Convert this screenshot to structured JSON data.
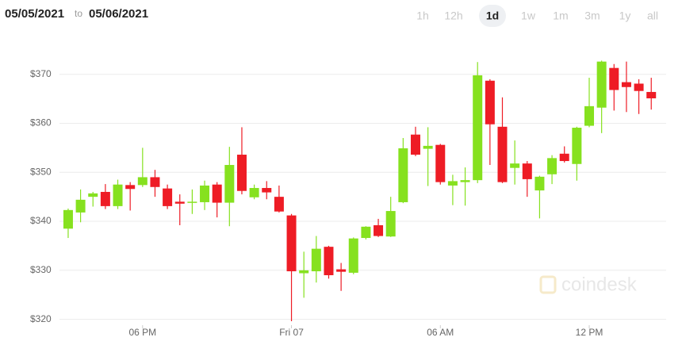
{
  "date_range": {
    "start": "05/05/2021",
    "separator": "to",
    "end": "05/06/2021"
  },
  "range_buttons": [
    {
      "label": "1h",
      "active": false
    },
    {
      "label": "12h",
      "active": false
    },
    {
      "label": "1d",
      "active": true
    },
    {
      "label": "1w",
      "active": false
    },
    {
      "label": "1m",
      "active": false
    },
    {
      "label": "3m",
      "active": false
    },
    {
      "label": "1y",
      "active": false
    },
    {
      "label": "all",
      "active": false
    }
  ],
  "watermark": "coindesk",
  "chart_data": {
    "type": "candlestick",
    "x": [
      15,
      15.5,
      16,
      16.5,
      17,
      17.5,
      18,
      18.5,
      19,
      19.5,
      20,
      20.5,
      21,
      21.5,
      22,
      22.5,
      23,
      23.5,
      24,
      24.5,
      25,
      25.5,
      26,
      26.5,
      27,
      27.5,
      28,
      28.5,
      29,
      29.5,
      30,
      30.5,
      31,
      31.5,
      32,
      32.5,
      33,
      33.5,
      34,
      34.5,
      35,
      35.5,
      36,
      36.5,
      37,
      37.5,
      38,
      38.5
    ],
    "open": [
      338.5,
      341.8,
      345.0,
      346.0,
      343.1,
      347.4,
      347.4,
      349.0,
      346.7,
      344.0,
      343.8,
      343.9,
      347.5,
      343.8,
      353.6,
      344.9,
      346.8,
      345.0,
      341.2,
      329.4,
      329.8,
      334.8,
      330.2,
      329.5,
      336.6,
      339.2,
      336.9,
      343.9,
      357.7,
      354.8,
      355.6,
      347.3,
      348.0,
      348.4,
      368.7,
      359.3,
      350.9,
      351.8,
      346.3,
      349.6,
      353.8,
      351.7,
      359.5,
      363.2,
      371.3,
      368.4,
      368.1,
      366.4
    ],
    "high": [
      342.6,
      346.5,
      346.0,
      347.6,
      348.5,
      348.0,
      355.0,
      350.5,
      347.5,
      345.5,
      346.5,
      348.3,
      348.0,
      355.2,
      359.2,
      347.5,
      348.2,
      347.3,
      341.5,
      333.8,
      337.0,
      335.0,
      331.5,
      336.7,
      339.0,
      340.5,
      345.0,
      357.0,
      359.3,
      359.2,
      355.8,
      349.5,
      351.0,
      372.5,
      369.0,
      365.3,
      356.5,
      352.3,
      349.3,
      353.5,
      355.3,
      359.3,
      369.3,
      372.8,
      372.1,
      372.6,
      369.0,
      369.3
    ],
    "low": [
      336.6,
      339.8,
      343.0,
      342.5,
      342.5,
      342.2,
      347.0,
      345.0,
      342.5,
      339.2,
      341.5,
      342.3,
      340.8,
      339.0,
      345.5,
      344.5,
      344.5,
      341.8,
      319.6,
      324.4,
      327.5,
      328.3,
      325.8,
      329.2,
      336.3,
      336.8,
      336.8,
      343.7,
      353.3,
      347.2,
      347.5,
      343.3,
      343.2,
      347.8,
      351.5,
      347.8,
      347.5,
      345.0,
      340.6,
      347.6,
      352.0,
      348.3,
      359.2,
      358.0,
      362.6,
      362.3,
      361.9,
      362.8
    ],
    "close": [
      342.3,
      344.4,
      345.7,
      343.1,
      347.5,
      346.6,
      349.0,
      347.0,
      343.1,
      343.6,
      344.0,
      347.3,
      343.8,
      351.5,
      346.2,
      346.8,
      345.9,
      342.0,
      329.8,
      330.0,
      334.4,
      329.0,
      329.7,
      336.5,
      338.9,
      337.0,
      342.1,
      354.9,
      353.6,
      355.4,
      348.0,
      348.2,
      348.4,
      369.8,
      359.8,
      348.0,
      351.8,
      348.6,
      349.1,
      352.9,
      352.3,
      359.1,
      363.5,
      372.6,
      366.8,
      367.4,
      366.6,
      365.1
    ],
    "up_color": "#86e11f",
    "down_color": "#ee1c25",
    "xlim": [
      14.65,
      39.1
    ],
    "xticks": [
      {
        "value": 18,
        "label": "06 PM"
      },
      {
        "value": 24,
        "label": "Fri 07"
      },
      {
        "value": 30,
        "label": "06 AM"
      },
      {
        "value": 36,
        "label": "12 PM"
      }
    ],
    "ylim": [
      318.8,
      374
    ],
    "yticks": [
      {
        "value": 320,
        "label": "$320"
      },
      {
        "value": 330,
        "label": "$330"
      },
      {
        "value": 340,
        "label": "$340"
      },
      {
        "value": 350,
        "label": "$350"
      },
      {
        "value": 360,
        "label": "$360"
      },
      {
        "value": 370,
        "label": "$370"
      }
    ],
    "grid": true
  }
}
